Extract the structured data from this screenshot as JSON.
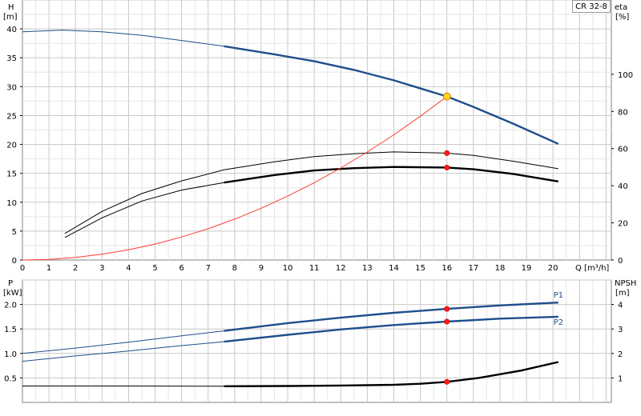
{
  "model": "CR 32-8",
  "chart_data": [
    {
      "type": "line",
      "panel": "head-efficiency",
      "y_left_label": [
        "H",
        "[m]"
      ],
      "y_right_label": [
        "eta",
        "[%]"
      ],
      "xlabel": "Q [m³/h]",
      "xlim": [
        0,
        22.2
      ],
      "ylim": [
        0,
        45
      ],
      "y2lim": [
        0,
        140
      ],
      "x_ticks": [
        0,
        1,
        2,
        3,
        4,
        5,
        6,
        7,
        8,
        9,
        10,
        11,
        12,
        13,
        14,
        15,
        16,
        17,
        18,
        19,
        20
      ],
      "y_ticks": [
        0,
        5,
        10,
        15,
        20,
        25,
        30,
        35,
        40
      ],
      "y2_ticks": [
        0,
        20,
        40,
        60,
        80,
        100
      ],
      "grid": true,
      "series": [
        {
          "role": "head",
          "axis": "left",
          "color": "#1f4e8c",
          "x": [
            0,
            1.5,
            3,
            4.5,
            6,
            7.6,
            9.5,
            11,
            12.5,
            14,
            16,
            17,
            18.5,
            20.2
          ],
          "y": [
            39.5,
            39.8,
            39.5,
            38.9,
            38.0,
            37.0,
            35.6,
            34.4,
            32.9,
            31.1,
            28.3,
            26.5,
            23.6,
            20.1
          ],
          "thick_from": 7.6
        },
        {
          "role": "head-curve-2",
          "axis": "left",
          "color": "#000000",
          "x": [
            1.6,
            3,
            4.5,
            6,
            7.6,
            9.5,
            11,
            12.5,
            14,
            16,
            17,
            18.5,
            20.2
          ],
          "y": [
            4.6,
            8.4,
            11.5,
            13.7,
            15.6,
            17.0,
            17.9,
            18.4,
            18.7,
            18.5,
            18.1,
            17.1,
            15.8
          ],
          "thick_from": 99
        },
        {
          "role": "efficiency",
          "axis": "left",
          "color": "#000000",
          "x": [
            1.6,
            3,
            4.5,
            6,
            7.6,
            9.5,
            11,
            12.5,
            14,
            16,
            17,
            18.5,
            20.2
          ],
          "y": [
            3.9,
            7.3,
            10.2,
            12.1,
            13.4,
            14.7,
            15.5,
            15.9,
            16.1,
            16.0,
            15.7,
            14.9,
            13.6
          ],
          "thick_from": 7.6
        },
        {
          "role": "system",
          "axis": "left",
          "color": "#ff3b30",
          "x": [
            0,
            1,
            2,
            3,
            4,
            5,
            6,
            7,
            8,
            9,
            10,
            11,
            12,
            13,
            14,
            15,
            16
          ],
          "y": [
            0,
            0.1,
            0.44,
            1.0,
            1.77,
            2.76,
            3.98,
            5.42,
            7.08,
            8.96,
            11.06,
            13.38,
            15.92,
            18.69,
            21.67,
            24.88,
            28.3
          ],
          "thick_from": 99
        }
      ],
      "points": [
        {
          "x": 16,
          "y": 28.3,
          "kind": "operating-point"
        },
        {
          "x": 16,
          "y": 18.5,
          "kind": "marker"
        },
        {
          "x": 16,
          "y": 16.0,
          "kind": "marker"
        }
      ]
    },
    {
      "type": "line",
      "panel": "power-npsh",
      "y_left_label": [
        "P",
        "[kW]"
      ],
      "y_right_label": [
        "NPSH",
        "[m]"
      ],
      "xlim": [
        0,
        22.2
      ],
      "ylim": [
        0,
        2.5
      ],
      "y2lim": [
        0,
        5
      ],
      "y_ticks": [
        0.5,
        1.0,
        1.5,
        2.0
      ],
      "y_tick_labels": [
        "0.5",
        "1.0",
        "1.5",
        "2.0"
      ],
      "y2_ticks": [
        1,
        2,
        3,
        4
      ],
      "grid": true,
      "series": [
        {
          "name": "P1",
          "axis": "left",
          "color": "#1f4e8c",
          "x": [
            0,
            2,
            4,
            6,
            7.6,
            10,
            12,
            14,
            16,
            18,
            20.2
          ],
          "y": [
            1.0,
            1.11,
            1.23,
            1.36,
            1.46,
            1.62,
            1.73,
            1.83,
            1.91,
            1.98,
            2.04
          ],
          "thick_from": 7.6
        },
        {
          "name": "P2",
          "axis": "left",
          "color": "#1f4e8c",
          "x": [
            0,
            2,
            4,
            6,
            7.6,
            10,
            12,
            14,
            16,
            18,
            20.2
          ],
          "y": [
            0.84,
            0.95,
            1.05,
            1.16,
            1.24,
            1.38,
            1.49,
            1.58,
            1.65,
            1.71,
            1.75
          ],
          "thick_from": 7.6
        },
        {
          "name": "NPSH",
          "axis": "right",
          "color": "#000000",
          "x": [
            0,
            4,
            7.6,
            10,
            12,
            14,
            15,
            16,
            17.2,
            18.8,
            20.2
          ],
          "y": [
            0.67,
            0.67,
            0.66,
            0.67,
            0.69,
            0.72,
            0.76,
            0.84,
            1.0,
            1.3,
            1.65
          ],
          "thick_from": 7.6
        }
      ],
      "points": [
        {
          "x": 16,
          "y": 1.91,
          "axis": "left"
        },
        {
          "x": 16,
          "y": 1.65,
          "axis": "left"
        },
        {
          "x": 16,
          "y": 0.84,
          "axis": "right"
        }
      ]
    }
  ]
}
